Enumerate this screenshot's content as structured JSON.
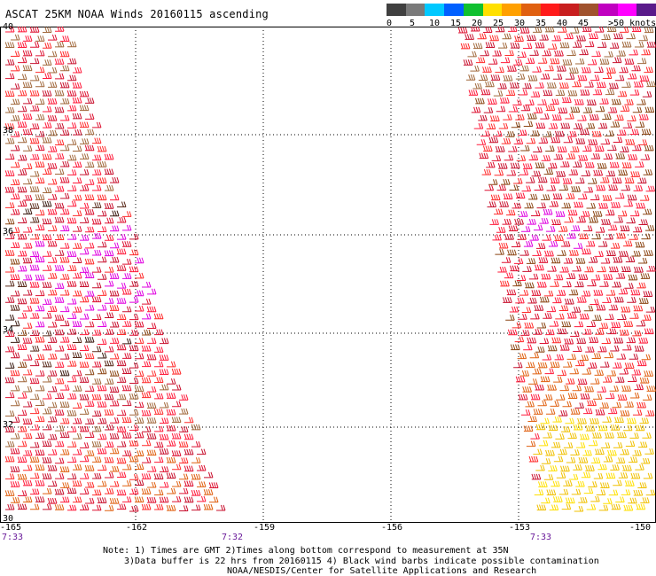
{
  "title": "ASCAT 25KM NOAA Winds 20160115 ascending",
  "legend": {
    "colors": [
      "#404040",
      "#7a7a7a",
      "#00c8ff",
      "#0060ff",
      "#10c030",
      "#ffe000",
      "#ffa000",
      "#e06010",
      "#ff1a1a",
      "#c81e1e",
      "#a0522d",
      "#c000c0",
      "#ff00ff",
      "#5a1a8a"
    ],
    "labels": [
      "0",
      "5",
      "10",
      "15",
      "20",
      "25",
      "30",
      "35",
      "40",
      "45",
      ">50 knots"
    ]
  },
  "map": {
    "lat_labels": [
      "40",
      "38",
      "36",
      "34",
      "32",
      "30"
    ],
    "lon_labels": [
      "-165",
      "-162",
      "-159",
      "-156",
      "-153",
      "-150"
    ],
    "time_labels": [
      "7:33",
      "7:32",
      "7:33"
    ]
  },
  "notes": [
    "Note: 1) Times are GMT 2)Times along bottom correspond to measurement at 35N",
    "3)Data buffer is 22 hrs from 20160115 4) Black wind barbs indicate possible contamination",
    "NOAA/NESDIS/Center for Satellite Applications and Research"
  ]
}
